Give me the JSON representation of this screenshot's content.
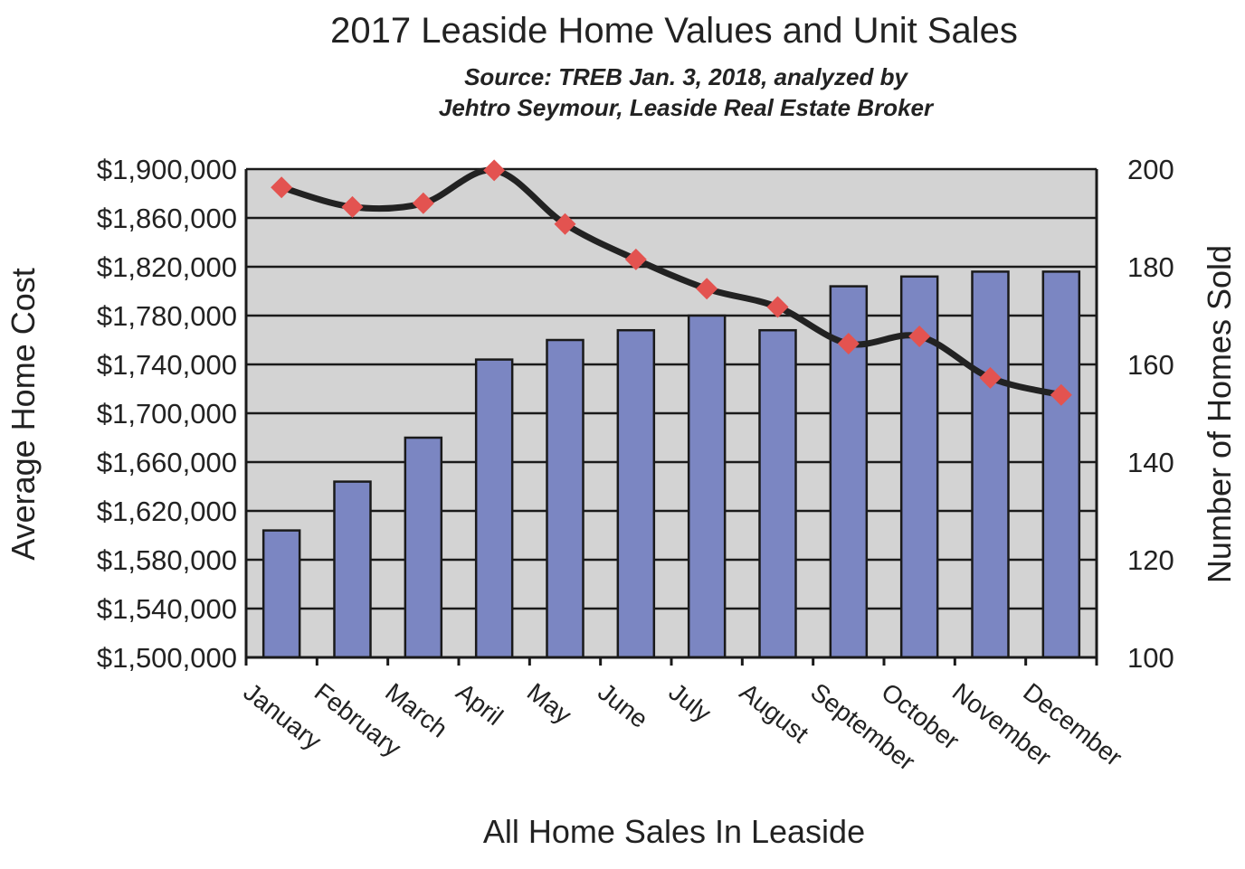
{
  "chart_data": {
    "type": "bar",
    "title": "2017 Leaside Home Values and Unit Sales",
    "subtitle_lines": [
      "Source:  TREB Jan. 3, 2018, analyzed by",
      "Jehtro Seymour, Leaside Real Estate Broker"
    ],
    "xlabel": "All Home Sales In Leaside",
    "ylabel_left": "Average Home Cost",
    "ylabel_right": "Number of Homes Sold",
    "categories": [
      "January",
      "February",
      "March",
      "April",
      "May",
      "June",
      "July",
      "August",
      "September",
      "October",
      "November",
      "December"
    ],
    "y_left_ticks": [
      "$1,500,000",
      "$1,540,000",
      "$1,580,000",
      "$1,620,000",
      "$1,660,000",
      "$1,700,000",
      "$1,740,000",
      "$1,780,000",
      "$1,820,000",
      "$1,860,000",
      "$1,900,000"
    ],
    "y_right_ticks": [
      "100",
      "120",
      "140",
      "160",
      "180",
      "200"
    ],
    "ylim_left": [
      1500000,
      1900000
    ],
    "ylim_right": [
      100,
      200
    ],
    "grid": true,
    "legend": "none",
    "series": [
      {
        "type": "bar",
        "axis": "right",
        "values": [
          126,
          136,
          145,
          161,
          165,
          167,
          170,
          167,
          176,
          178,
          179,
          179
        ],
        "color": "#7b86c2"
      },
      {
        "type": "line",
        "axis": "left",
        "values": [
          1885000,
          1869000,
          1872000,
          1899000,
          1855000,
          1826000,
          1802000,
          1787000,
          1757000,
          1763000,
          1729000,
          1715000
        ],
        "color": "#222222",
        "marker_color": "#e35350"
      }
    ],
    "plot_background": "#d3d3d3"
  }
}
